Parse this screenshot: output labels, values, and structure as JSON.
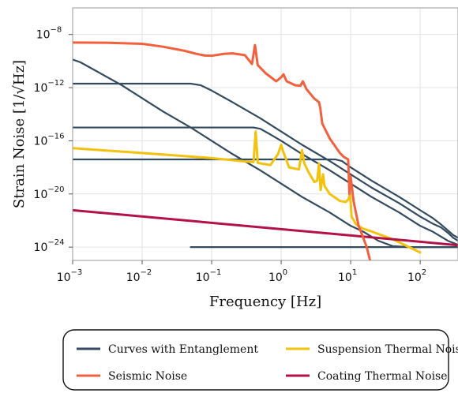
{
  "chart_data": {
    "type": "line",
    "title": "",
    "xlabel": "Frequency [Hz]",
    "ylabel": "Strain Noise [1/√Hz]",
    "x_scale": "log",
    "y_scale": "log",
    "xlim": [
      0.001,
      350
    ],
    "ylim": [
      1e-25,
      1e-06
    ],
    "grid": true,
    "legend_position": "bottom",
    "x_ticks": [
      {
        "base": "10",
        "exp": "−3"
      },
      {
        "base": "10",
        "exp": "−2"
      },
      {
        "base": "10",
        "exp": "−1"
      },
      {
        "base": "10",
        "exp": "0"
      },
      {
        "base": "10",
        "exp": "1"
      },
      {
        "base": "10",
        "exp": "2"
      }
    ],
    "y_ticks": [
      {
        "base": "10",
        "exp": "−8"
      },
      {
        "base": "10",
        "exp": "−12"
      },
      {
        "base": "10",
        "exp": "−16"
      },
      {
        "base": "10",
        "exp": "−20"
      },
      {
        "base": "10",
        "exp": "−24"
      }
    ],
    "series": [
      {
        "name": "Curves with Entanglement",
        "color": "#344a5e",
        "curves": [
          [
            [
              0.001,
              1.3e-10
            ],
            [
              0.0013,
              8e-11
            ],
            [
              0.002,
              2.3e-11
            ],
            [
              0.005,
              1.6e-12
            ],
            [
              0.01,
              1.6e-13
            ],
            [
              0.02,
              1.6e-14
            ],
            [
              0.05,
              1e-15
            ],
            [
              0.1,
              1e-16
            ],
            [
              0.2,
              1e-17
            ],
            [
              0.5,
              6e-19
            ],
            [
              1,
              6e-20
            ],
            [
              2,
              6e-21
            ],
            [
              5,
              4e-22
            ],
            [
              10,
              4e-23
            ],
            [
              15,
              1.5e-23
            ],
            [
              25,
              3e-24
            ],
            [
              40,
              1.2e-24
            ],
            [
              70,
              1e-24
            ],
            [
              350,
              1e-24
            ]
          ],
          [
            [
              0.001,
              2e-12
            ],
            [
              0.05,
              2e-12
            ],
            [
              0.07,
              1.5e-12
            ],
            [
              0.1,
              6e-13
            ],
            [
              0.2,
              8e-14
            ],
            [
              0.5,
              5e-15
            ],
            [
              1,
              5e-16
            ],
            [
              2,
              5e-17
            ],
            [
              5,
              3e-18
            ],
            [
              10,
              3e-19
            ],
            [
              20,
              3e-20
            ],
            [
              50,
              2e-21
            ],
            [
              100,
              2e-22
            ],
            [
              150,
              6e-23
            ],
            [
              200,
              3e-23
            ],
            [
              250,
              1.2e-23
            ],
            [
              300,
              5e-24
            ],
            [
              350,
              3e-24
            ]
          ],
          [
            [
              0.001,
              1e-15
            ],
            [
              0.4,
              1e-15
            ],
            [
              0.5,
              8e-16
            ],
            [
              0.7,
              3e-16
            ],
            [
              1,
              1e-16
            ],
            [
              2,
              1e-17
            ],
            [
              5,
              6e-19
            ],
            [
              10,
              6e-20
            ],
            [
              20,
              6e-21
            ],
            [
              50,
              4e-22
            ],
            [
              100,
              4e-23
            ],
            [
              150,
              1.5e-23
            ],
            [
              250,
              3e-24
            ],
            [
              350,
              1.5e-24
            ]
          ],
          [
            [
              0.001,
              4e-18
            ],
            [
              6,
              4e-18
            ],
            [
              7.5,
              3e-18
            ],
            [
              10,
              1e-18
            ],
            [
              20,
              1e-19
            ],
            [
              50,
              6e-21
            ],
            [
              100,
              6e-22
            ],
            [
              150,
              1.6e-22
            ],
            [
              200,
              5e-23
            ],
            [
              300,
              8e-24
            ],
            [
              350,
              5e-24
            ]
          ],
          [
            [
              0.05,
              1e-24
            ],
            [
              350,
              1e-24
            ]
          ]
        ]
      },
      {
        "name": "Seismic Noise",
        "color": "#f2603e",
        "curves": [
          [
            [
              0.001,
              2.5e-09
            ],
            [
              0.003,
              2.4e-09
            ],
            [
              0.01,
              2e-09
            ],
            [
              0.02,
              1.2e-09
            ],
            [
              0.04,
              6e-10
            ],
            [
              0.06,
              3.5e-10
            ],
            [
              0.08,
              2.6e-10
            ],
            [
              0.1,
              2.5e-10
            ],
            [
              0.15,
              3.5e-10
            ],
            [
              0.2,
              3.8e-10
            ],
            [
              0.3,
              2.8e-10
            ],
            [
              0.38,
              6e-11
            ],
            [
              0.42,
              1.6e-09
            ],
            [
              0.46,
              5e-11
            ],
            [
              0.6,
              1.2e-11
            ],
            [
              0.85,
              3e-12
            ],
            [
              1,
              6e-12
            ],
            [
              1.08,
              1e-11
            ],
            [
              1.2,
              3e-12
            ],
            [
              1.6,
              1.5e-12
            ],
            [
              1.9,
              1.4e-12
            ],
            [
              2.05,
              3e-12
            ],
            [
              2.3,
              8e-13
            ],
            [
              3,
              1.5e-13
            ],
            [
              3.5,
              8e-14
            ],
            [
              3.65,
              3e-14
            ],
            [
              3.9,
              2e-15
            ],
            [
              5,
              1.5e-16
            ],
            [
              7,
              1.2e-17
            ],
            [
              8,
              6e-18
            ],
            [
              9.2,
              4e-18
            ],
            [
              9.6,
              1e-20
            ],
            [
              10,
              2e-19
            ],
            [
              11,
              3e-21
            ],
            [
              13,
              4e-23
            ],
            [
              15,
              6e-24
            ],
            [
              17,
              1e-24
            ],
            [
              19,
              1e-25
            ]
          ]
        ]
      },
      {
        "name": "Suspension Thermal Noise",
        "color": "#f2c20f",
        "curves": [
          [
            [
              0.001,
              2.8e-17
            ],
            [
              0.01,
              1.2e-17
            ],
            [
              0.1,
              5e-18
            ],
            [
              0.3,
              2.8e-18
            ],
            [
              0.4,
              2.5e-18
            ],
            [
              0.43,
              5e-16
            ],
            [
              0.46,
              2.2e-18
            ],
            [
              0.7,
              1.5e-18
            ],
            [
              0.9,
              1e-17
            ],
            [
              1,
              5e-17
            ],
            [
              1.05,
              2e-17
            ],
            [
              1.3,
              1e-18
            ],
            [
              1.8,
              7e-19
            ],
            [
              2,
              2e-17
            ],
            [
              2.15,
              2e-18
            ],
            [
              2.5,
              4e-19
            ],
            [
              3,
              8e-20
            ],
            [
              3.3,
              1e-19
            ],
            [
              3.5,
              2e-18
            ],
            [
              3.7,
              2e-20
            ],
            [
              4,
              3e-19
            ],
            [
              4.2,
              4e-20
            ],
            [
              5,
              1e-20
            ],
            [
              7,
              3e-21
            ],
            [
              8.5,
              2.5e-21
            ],
            [
              9.3,
              4e-21
            ],
            [
              9.8,
              1e-20
            ],
            [
              10.3,
              2e-22
            ],
            [
              12,
              5e-23
            ],
            [
              15,
              2.5e-23
            ],
            [
              20,
              1.5e-23
            ],
            [
              40,
              4e-24
            ],
            [
              80,
              7e-25
            ],
            [
              100,
              4e-25
            ]
          ]
        ]
      },
      {
        "name": "Coating Thermal Noise",
        "color": "#b31247",
        "curves": [
          [
            [
              0.001,
              6e-22
            ],
            [
              350,
              1.4e-24
            ]
          ]
        ]
      }
    ]
  }
}
